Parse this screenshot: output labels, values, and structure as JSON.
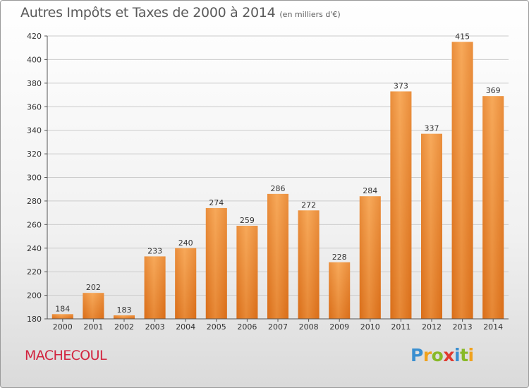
{
  "chart_data": {
    "type": "bar",
    "title": "Autres Impôts et Taxes de 2000 à 2014",
    "subtitle": "(en milliers d'€)",
    "categories": [
      "2000",
      "2001",
      "2002",
      "2003",
      "2004",
      "2005",
      "2006",
      "2007",
      "2008",
      "2009",
      "2010",
      "2011",
      "2012",
      "2013",
      "2014"
    ],
    "values": [
      184,
      202,
      183,
      233,
      240,
      274,
      259,
      286,
      272,
      228,
      284,
      373,
      337,
      415,
      369
    ],
    "ylim": [
      180,
      420
    ],
    "yticks": [
      180,
      200,
      220,
      240,
      260,
      280,
      300,
      320,
      340,
      360,
      380,
      400,
      420
    ],
    "xlabel": "",
    "ylabel": "",
    "grid": true,
    "colors": {
      "bar_light": "#f7a95a",
      "bar_dark": "#d96d18",
      "grid": "#cccccc",
      "axis": "#555555"
    }
  },
  "place_name": "MACHECOUL",
  "logo": {
    "letters": [
      "P",
      "r",
      "o",
      "x",
      "i",
      "t",
      "i"
    ],
    "colors": [
      "#3a8fd0",
      "#f0a21e",
      "#88b928",
      "#e03a2f",
      "#3a8fd0",
      "#88b928",
      "#f0a21e"
    ]
  }
}
